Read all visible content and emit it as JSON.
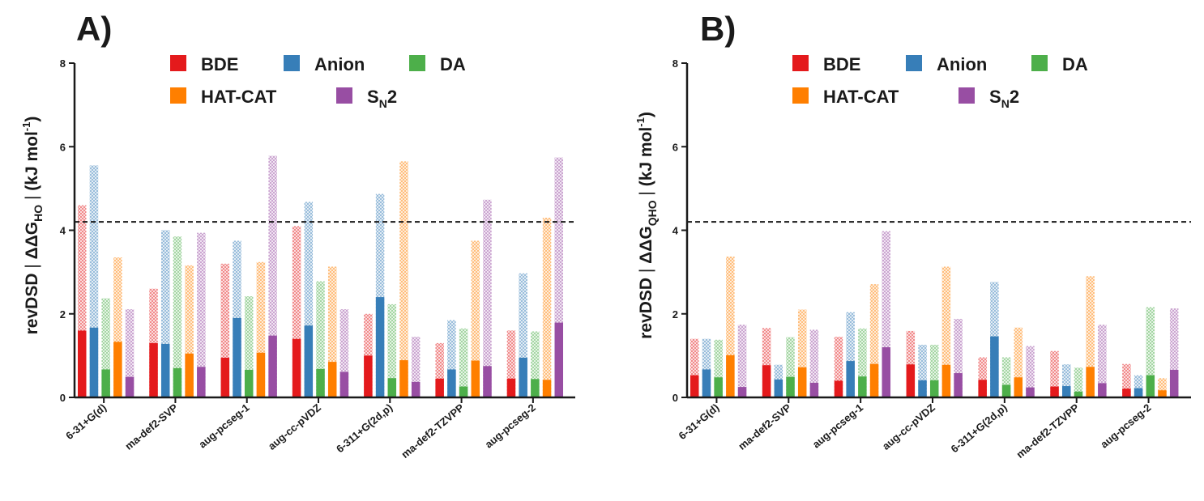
{
  "colors": {
    "BDE": "#e41a1c",
    "Anion": "#377eb8",
    "DA": "#4daf4a",
    "HAT-CAT": "#ff7f00",
    "SN2": "#984ea3",
    "axis": "#1a1a1a",
    "reference_line": "#1a1a1a"
  },
  "legend": [
    {
      "key": "BDE",
      "label": "BDE"
    },
    {
      "key": "Anion",
      "label": "Anion"
    },
    {
      "key": "DA",
      "label": "DA"
    },
    {
      "key": "HAT-CAT",
      "label": "HAT-CAT"
    },
    {
      "key": "SN2",
      "label": "S",
      "sub": "N",
      "suffix": "2"
    }
  ],
  "chart_data": [
    {
      "panel": "A)",
      "type": "bar",
      "ylabel": {
        "prefix": "revDSD",
        "symbol": "ΔΔG",
        "sub": "HO",
        "units": "(kJ mol",
        "units_sup": "-1",
        "units_close": ")"
      },
      "ylim": [
        0,
        8
      ],
      "yticks": [
        0,
        2,
        4,
        6,
        8
      ],
      "reference_line": 4.2,
      "categories": [
        "6-31+G(d)",
        "ma-def2-SVP",
        "aug-pcseg-1",
        "aug-cc-pVDZ",
        "6-311+G(2d,p)",
        "ma-def2-TZVPP",
        "aug-pcseg-2"
      ],
      "series": [
        {
          "name": "BDE",
          "key": "BDE",
          "solid": [
            1.6,
            1.3,
            0.95,
            1.4,
            1.0,
            0.45,
            0.45
          ],
          "hatched": [
            4.6,
            2.6,
            3.2,
            4.1,
            2.0,
            1.3,
            1.6
          ]
        },
        {
          "name": "Anion",
          "key": "Anion",
          "solid": [
            1.67,
            1.28,
            1.9,
            1.72,
            2.4,
            0.67,
            0.95
          ],
          "hatched": [
            5.55,
            4.0,
            3.75,
            4.68,
            4.87,
            1.85,
            2.97
          ]
        },
        {
          "name": "DA",
          "key": "DA",
          "solid": [
            0.67,
            0.7,
            0.66,
            0.68,
            0.46,
            0.26,
            0.44
          ],
          "hatched": [
            2.37,
            3.85,
            2.42,
            2.78,
            2.23,
            1.65,
            1.58
          ]
        },
        {
          "name": "HAT-CAT",
          "key": "HAT-CAT",
          "solid": [
            1.33,
            1.05,
            1.07,
            0.85,
            0.89,
            0.88,
            0.42
          ],
          "hatched": [
            3.35,
            3.16,
            3.24,
            3.13,
            5.65,
            3.75,
            4.3
          ]
        },
        {
          "name": "SN2",
          "key": "SN2",
          "solid": [
            0.49,
            0.73,
            1.48,
            0.61,
            0.37,
            0.75,
            1.79
          ],
          "hatched": [
            2.11,
            3.94,
            5.78,
            2.11,
            1.45,
            4.73,
            5.74
          ]
        }
      ]
    },
    {
      "panel": "B)",
      "type": "bar",
      "ylabel": {
        "prefix": "revDSD",
        "symbol": "ΔΔG",
        "sub": "QHO",
        "units": "(kJ mol",
        "units_sup": "-1",
        "units_close": ")"
      },
      "ylim": [
        0,
        8
      ],
      "yticks": [
        0,
        2,
        4,
        6,
        8
      ],
      "reference_line": 4.2,
      "categories": [
        "6-31+G(d)",
        "ma-def2-SVP",
        "aug-pcseg-1",
        "aug-cc-pVDZ",
        "6-311+G(2d,p)",
        "ma-def2-TZVPP",
        "aug-pcseg-2"
      ],
      "series": [
        {
          "name": "BDE",
          "key": "BDE",
          "solid": [
            0.53,
            0.77,
            0.4,
            0.79,
            0.42,
            0.26,
            0.21
          ],
          "hatched": [
            1.4,
            1.66,
            1.45,
            1.59,
            0.96,
            1.11,
            0.8
          ]
        },
        {
          "name": "Anion",
          "key": "Anion",
          "solid": [
            0.67,
            0.43,
            0.87,
            0.41,
            1.46,
            0.27,
            0.22
          ],
          "hatched": [
            1.4,
            0.78,
            2.04,
            1.26,
            2.76,
            0.79,
            0.53
          ]
        },
        {
          "name": "DA",
          "key": "DA",
          "solid": [
            0.48,
            0.49,
            0.5,
            0.41,
            0.3,
            0.14,
            0.53
          ],
          "hatched": [
            1.38,
            1.44,
            1.65,
            1.26,
            0.96,
            0.71,
            2.16
          ]
        },
        {
          "name": "HAT-CAT",
          "key": "HAT-CAT",
          "solid": [
            1.01,
            0.72,
            0.8,
            0.78,
            0.48,
            0.73,
            0.17
          ],
          "hatched": [
            3.37,
            2.1,
            2.71,
            3.13,
            1.67,
            2.9,
            0.46
          ]
        },
        {
          "name": "SN2",
          "key": "SN2",
          "solid": [
            0.25,
            0.35,
            1.2,
            0.58,
            0.24,
            0.34,
            0.66
          ],
          "hatched": [
            1.74,
            1.62,
            3.98,
            1.88,
            1.23,
            1.74,
            2.13
          ]
        }
      ]
    }
  ]
}
